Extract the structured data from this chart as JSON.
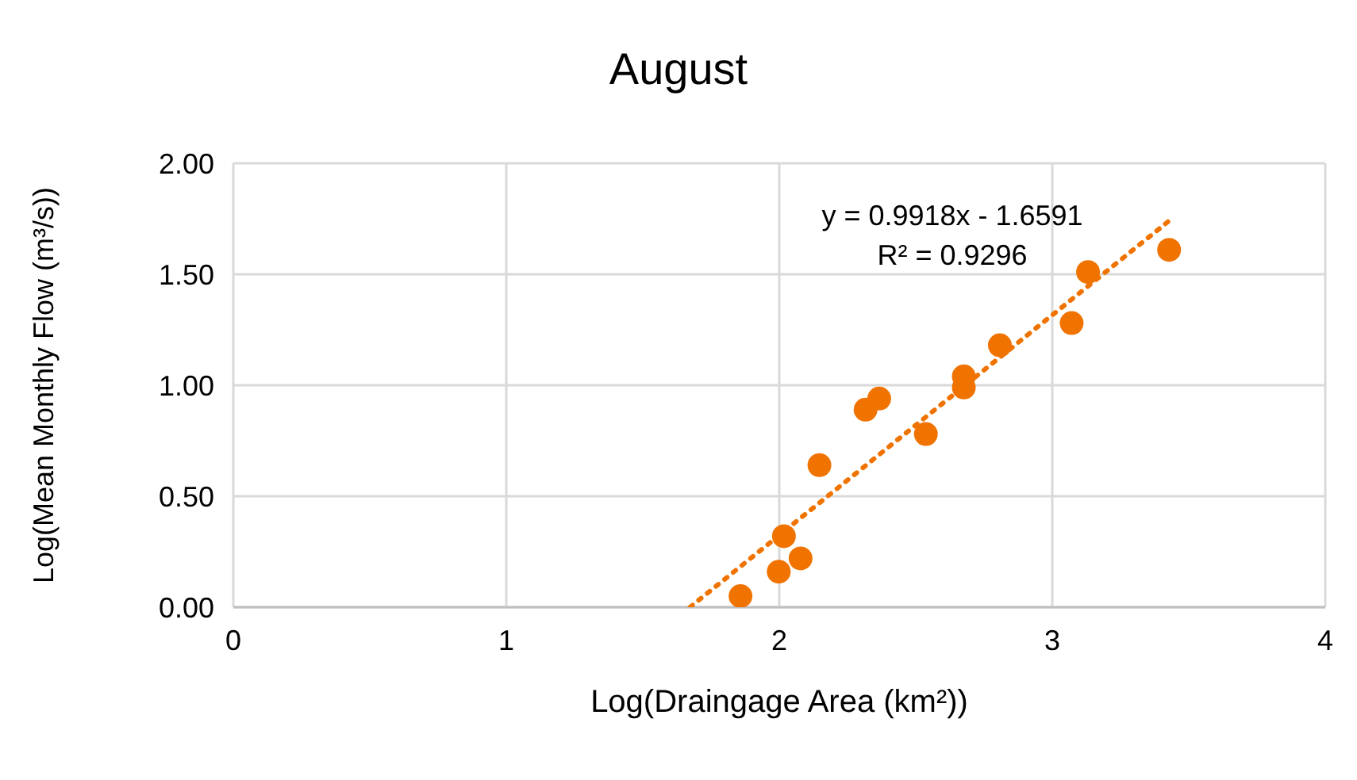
{
  "chart_data": {
    "type": "scatter",
    "title": "August",
    "xlabel": "Log(Draingage Area (km²))",
    "ylabel": "Log(Mean Monthly Flow (m³/s))",
    "series": [
      {
        "color": "#f07300",
        "marker": "circle",
        "x": [
          1.858,
          1.998,
          2.078,
          2.017,
          2.147,
          2.316,
          2.366,
          2.537,
          2.676,
          2.676,
          2.808,
          3.071,
          3.131,
          3.428
        ],
        "values": [
          0.05,
          0.16,
          0.22,
          0.32,
          0.64,
          0.89,
          0.94,
          0.78,
          0.99,
          1.04,
          1.18,
          1.28,
          1.51,
          1.61
        ]
      },
      {
        "type": "line",
        "color": "#f07300",
        "marker": "none",
        "line_style": "dotted",
        "x": [
          1.673,
          3.43
        ],
        "values": [
          0,
          1.743
        ]
      }
    ],
    "annotations": [
      "y = 0.9918x - 1.6591",
      "R² = 0.9296"
    ],
    "xlim": [
      0,
      4
    ],
    "xticks": [
      0,
      1,
      2,
      3,
      4
    ],
    "ylim": [
      0,
      2
    ],
    "yticks": [
      {
        "value": 0,
        "label": "0.00"
      },
      {
        "value": 0.5,
        "label": "0.50"
      },
      {
        "value": 1,
        "label": "1.00"
      },
      {
        "value": 1.5,
        "label": "1.50"
      },
      {
        "value": 2,
        "label": "2.00"
      }
    ],
    "grid": true,
    "legend": false
  }
}
